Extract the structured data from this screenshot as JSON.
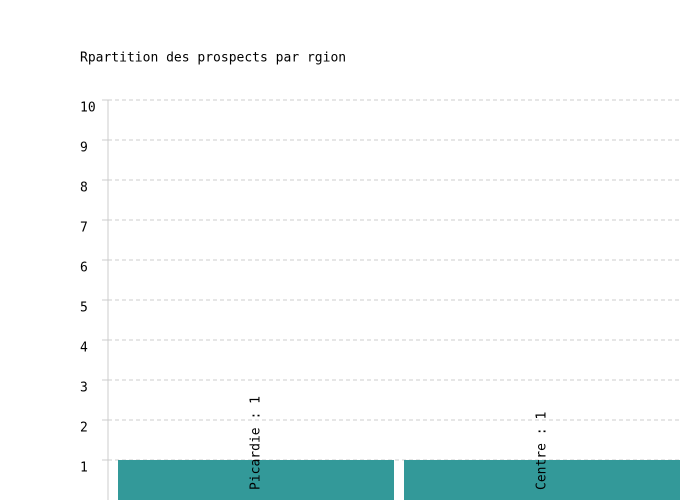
{
  "chart_data": {
    "type": "bar",
    "title": "Rpartition des prospects par rgion",
    "values": [
      1,
      1
    ],
    "value_labels": [
      "Picardie : 1",
      "Centre : 1"
    ],
    "color": "#339999",
    "ylim": [
      0,
      10
    ],
    "yticks": [
      1,
      2,
      3,
      4,
      5,
      6,
      7,
      8,
      9,
      10
    ],
    "grid": true
  }
}
